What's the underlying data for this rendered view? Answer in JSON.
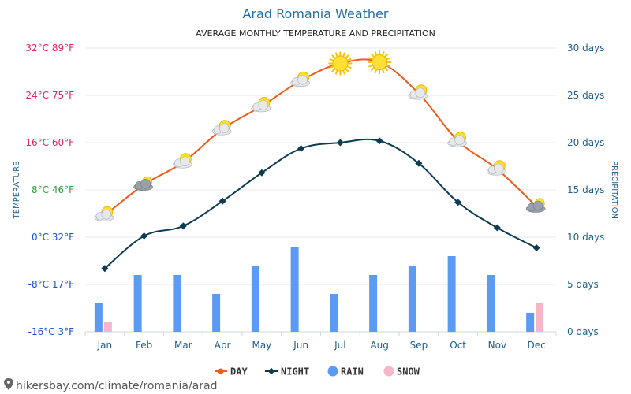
{
  "chart_data": {
    "type": "line",
    "title": "Arad Romania Weather",
    "subtitle": "AVERAGE MONTHLY TEMPERATURE AND PRECIPITATION",
    "categories": [
      "Jan",
      "Feb",
      "Mar",
      "Apr",
      "May",
      "Jun",
      "Jul",
      "Aug",
      "Sep",
      "Oct",
      "Nov",
      "Dec"
    ],
    "left_axis": {
      "label": "TEMPERATURE",
      "range_c": [
        -16,
        32
      ],
      "ticks": [
        {
          "value": 32,
          "label": "32°C 89°F",
          "color": "#e0245e"
        },
        {
          "value": 24,
          "label": "24°C 75°F",
          "color": "#e0245e"
        },
        {
          "value": 16,
          "label": "16°C 60°F",
          "color": "#e0245e"
        },
        {
          "value": 8,
          "label": "8°C 46°F",
          "color": "#2e9e3a"
        },
        {
          "value": 0,
          "label": "0°C 32°F",
          "color": "#1a4fd0"
        },
        {
          "value": -8,
          "label": "-8°C 17°F",
          "color": "#1a4fd0"
        },
        {
          "value": -16,
          "label": "-16°C 3°F",
          "color": "#1a4fd0"
        }
      ]
    },
    "right_axis": {
      "label": "PRECIPITATION",
      "range_days": [
        0,
        30
      ],
      "ticks": [
        {
          "value": 30,
          "label": "30 days"
        },
        {
          "value": 25,
          "label": "25 days"
        },
        {
          "value": 20,
          "label": "20 days"
        },
        {
          "value": 15,
          "label": "15 days"
        },
        {
          "value": 10,
          "label": "10 days"
        },
        {
          "value": 5,
          "label": "5 days"
        },
        {
          "value": 0,
          "label": "0 days"
        }
      ]
    },
    "series": [
      {
        "name": "DAY",
        "axis": "left",
        "kind": "line",
        "color": "#f05a1a",
        "values": [
          3.7,
          8.9,
          12.7,
          18.3,
          22.2,
          26.5,
          29.4,
          29.6,
          24.3,
          16.3,
          11.5,
          5.2
        ]
      },
      {
        "name": "NIGHT",
        "axis": "left",
        "kind": "line",
        "color": "#0c3b52",
        "values": [
          -5.3,
          0.2,
          1.9,
          6.1,
          10.9,
          15.0,
          16.0,
          16.3,
          12.5,
          5.9,
          1.6,
          -1.8
        ]
      },
      {
        "name": "RAIN",
        "axis": "right",
        "kind": "bar",
        "color": "#5b9bf5",
        "values": [
          3,
          6,
          6,
          4,
          7,
          9,
          4,
          6,
          7,
          8,
          6,
          2
        ]
      },
      {
        "name": "SNOW",
        "axis": "right",
        "kind": "bar",
        "color": "#f7b6c8",
        "values": [
          1,
          0,
          0,
          0,
          0,
          0,
          0,
          0,
          0,
          0,
          0,
          3
        ]
      }
    ],
    "weather_icons": [
      "partly-cloudy",
      "cloudy",
      "partly-cloudy",
      "partly-cloudy",
      "partly-cloudy",
      "partly-cloudy",
      "sunny",
      "sunny",
      "partly-cloudy",
      "partly-cloudy",
      "partly-cloudy",
      "cloudy"
    ],
    "grid": true,
    "legend_position": "bottom-center"
  },
  "source": {
    "text": "hikersbay.com/climate/romania/arad",
    "icon": "location-pin-icon"
  }
}
